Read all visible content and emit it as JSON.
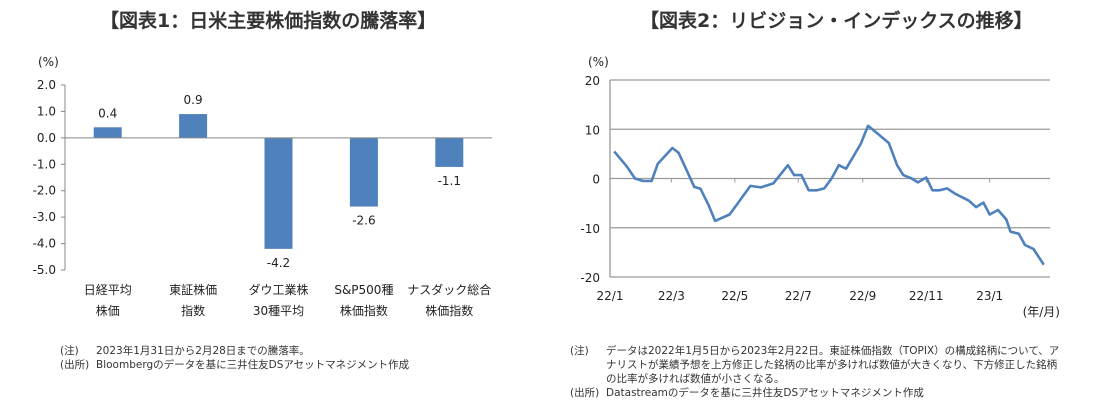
{
  "chart_data": [
    {
      "type": "bar",
      "title": "【図表1：日米主要株価指数の騰落率】",
      "ylabel": "(%)",
      "ylim": [
        -5.0,
        2.0
      ],
      "yticks": [
        "2.0",
        "1.0",
        "0.0",
        "-1.0",
        "-2.0",
        "-3.0",
        "-4.0",
        "-5.0"
      ],
      "categories": [
        [
          "日経平均",
          "株価"
        ],
        [
          "東証株価",
          "指数"
        ],
        [
          "ダウ工業株",
          "30種平均"
        ],
        [
          "S&P500種",
          "株価指数"
        ],
        [
          "ナスダック総合",
          "株価指数"
        ]
      ],
      "values": [
        0.4,
        0.9,
        -4.2,
        -2.6,
        -1.1
      ],
      "data_labels": [
        "0.4",
        "0.9",
        "-4.2",
        "-2.6",
        "-1.1"
      ],
      "bar_color": "#4f81bd",
      "grid": false,
      "notes": [
        {
          "key": "(注)",
          "text": "2023年1月31日から2月28日までの騰落率。"
        },
        {
          "key": "(出所)",
          "text": "Bloombergのデータを基に三井住友DSアセットマネジメント作成"
        }
      ]
    },
    {
      "type": "line",
      "title": "【図表2：リビジョン・インデックスの推移】",
      "ylabel": "(%)",
      "xlabel": "(年/月)",
      "ylim": [
        -20,
        20
      ],
      "yticks": [
        "20",
        "10",
        "0",
        "-10",
        "-20"
      ],
      "xticks": [
        {
          "label": "22/1",
          "date": "2022-01-01"
        },
        {
          "label": "22/3",
          "date": "2022-03-01"
        },
        {
          "label": "22/5",
          "date": "2022-05-01"
        },
        {
          "label": "22/7",
          "date": "2022-07-01"
        },
        {
          "label": "22/9",
          "date": "2022-09-01"
        },
        {
          "label": "22/11",
          "date": "2022-11-01"
        },
        {
          "label": "23/1",
          "date": "2023-01-01"
        }
      ],
      "xlim": [
        "2022-01-01",
        "2023-02-28"
      ],
      "grid": true,
      "line_color": "#4f81bd",
      "series": [
        {
          "points": [
            [
              "2022-01-05",
              5.5
            ],
            [
              "2022-01-17",
              2.5
            ],
            [
              "2022-01-25",
              0
            ],
            [
              "2022-02-02",
              -0.5
            ],
            [
              "2022-02-10",
              -0.5
            ],
            [
              "2022-02-16",
              3
            ],
            [
              "2022-03-02",
              6.2
            ],
            [
              "2022-03-08",
              5.2
            ],
            [
              "2022-03-23",
              -1.7
            ],
            [
              "2022-03-29",
              -2.1
            ],
            [
              "2022-04-06",
              -5.5
            ],
            [
              "2022-04-12",
              -8.6
            ],
            [
              "2022-04-26",
              -7.3
            ],
            [
              "2022-05-04",
              -5
            ],
            [
              "2022-05-16",
              -1.5
            ],
            [
              "2022-05-26",
              -1.8
            ],
            [
              "2022-06-07",
              -1
            ],
            [
              "2022-06-21",
              2.7
            ],
            [
              "2022-06-27",
              0.7
            ],
            [
              "2022-07-04",
              0.7
            ],
            [
              "2022-07-11",
              -2.4
            ],
            [
              "2022-07-19",
              -2.4
            ],
            [
              "2022-07-26",
              -2
            ],
            [
              "2022-08-02",
              0
            ],
            [
              "2022-08-09",
              2.7
            ],
            [
              "2022-08-16",
              2
            ],
            [
              "2022-08-30",
              7
            ],
            [
              "2022-09-06",
              10.7
            ],
            [
              "2022-09-12",
              9.7
            ],
            [
              "2022-09-26",
              7.2
            ],
            [
              "2022-10-04",
              2.7
            ],
            [
              "2022-10-10",
              0.7
            ],
            [
              "2022-10-18",
              0
            ],
            [
              "2022-10-24",
              -0.8
            ],
            [
              "2022-11-01",
              0.2
            ],
            [
              "2022-11-07",
              -2.4
            ],
            [
              "2022-11-14",
              -2.4
            ],
            [
              "2022-11-21",
              -2
            ],
            [
              "2022-11-29",
              -3.1
            ],
            [
              "2022-12-12",
              -4.5
            ],
            [
              "2022-12-19",
              -5.8
            ],
            [
              "2022-12-26",
              -4.9
            ],
            [
              "2023-01-01",
              -7.3
            ],
            [
              "2023-01-09",
              -6.4
            ],
            [
              "2023-01-17",
              -8.3
            ],
            [
              "2023-01-21",
              -10.8
            ],
            [
              "2023-01-29",
              -11.2
            ],
            [
              "2023-02-04",
              -13.5
            ],
            [
              "2023-02-12",
              -14.3
            ],
            [
              "2023-02-22",
              -17.5
            ]
          ]
        }
      ],
      "notes": [
        {
          "key": "(注)",
          "text": "データは2022年1月5日から2023年2月22日。東証株価指数（TOPIX）の構成銘柄について、アナリストが業績予想を上方修正した銘柄の比率が多ければ数値が大きくなり、下方修正した銘柄の比率が多ければ数値が小さくなる。"
        },
        {
          "key": "(出所)",
          "text": "Datastreamのデータを基に三井住友DSアセットマネジメント作成"
        }
      ]
    }
  ]
}
